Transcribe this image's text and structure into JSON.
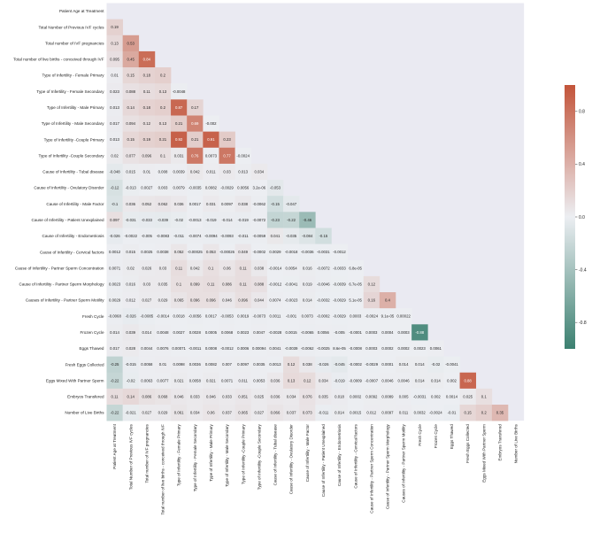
{
  "chart_data": {
    "type": "heatmap",
    "title": "",
    "mask": "upper-triangle",
    "colormap": [
      "#3b8070",
      "#eceef2",
      "#c3543a"
    ],
    "vmin": -1.0,
    "vmax": 1.0,
    "colorbar_ticks": [
      "0.8",
      "0.4",
      "0.0",
      "-0.4",
      "-0.8"
    ],
    "colorbar_values": [
      0.8,
      0.4,
      0.0,
      -0.4,
      -0.8
    ],
    "labels": [
      "Patient Age at Treatment",
      "Total Number of Previous IVF cycles",
      "Total number of IVF pregnancies",
      "Total number of live births - conceived through IVF",
      "Type of Infertility - Female Primary",
      "Type of Infertility - Female Secondary",
      "Type of Infertility - Male Primary",
      "Type of Infertility - Male Secondary",
      "Type of Infertility -Couple Primary",
      "Type of Infertility -Couple Secondary",
      "Cause  of Infertility - Tubal disease",
      "Cause of Infertility - Ovulatory Disorder",
      "Cause of Infertility - Male Factor",
      "Cause of Infertility - Patient Unexplained",
      "Cause of Infertility - Endometriosis",
      "Cause of Infertility - Cervical factors",
      "Cause of Infertility - Partner Sperm Concentration",
      "Cause of Infertility -  Partner Sperm Morphology",
      "Causes of Infertility - Partner Sperm Motility",
      "Fresh Cycle",
      "Frozen Cycle",
      "Eggs Thawed",
      "Fresh Eggs Collected",
      "Eggs Mixed With Partner Sperm",
      "Embryos Transfered",
      "Number of Live Births"
    ],
    "values": [
      [],
      [
        0.19
      ],
      [
        0.13,
        0.53
      ],
      [
        0.095,
        0.45,
        0.84
      ],
      [
        0.01,
        0.15,
        0.18,
        0.2
      ],
      [
        0.023,
        0.088,
        0.11,
        0.13,
        -0.0048
      ],
      [
        0.013,
        0.14,
        0.18,
        0.2,
        0.87,
        0.17
      ],
      [
        0.017,
        0.094,
        0.12,
        0.13,
        0.21,
        0.69,
        -0.002
      ],
      [
        0.013,
        0.15,
        0.19,
        0.21,
        0.92,
        0.21,
        0.91,
        0.23
      ],
      [
        0.02,
        0.077,
        0.096,
        0.1,
        0.031,
        0.76,
        0.0073,
        0.77,
        -0.0024
      ],
      [
        -0.048,
        0.015,
        0.01,
        0.008,
        0.0039,
        0.042,
        0.011,
        0.03,
        0.013,
        0.034
      ],
      [
        -0.12,
        -0.013,
        0.0027,
        0.003,
        0.0079,
        -0.0035,
        0.0082,
        -0.0029,
        0.0056,
        3.2e-06,
        -0.053
      ],
      [
        -0.1,
        0.036,
        0.052,
        0.062,
        0.036,
        0.0017,
        0.031,
        0.0097,
        0.038,
        -0.0062,
        -0.15,
        -0.047
      ],
      [
        0.097,
        -0.031,
        -0.033,
        -0.039,
        -0.02,
        -0.0013,
        -0.019,
        -0.014,
        -0.019,
        -0.0072,
        -0.23,
        -0.22,
        -0.46
      ],
      [
        -0.026,
        -0.0022,
        -0.005,
        -0.0083,
        -0.011,
        -0.0074,
        -0.0094,
        -0.0093,
        -0.011,
        -0.0059,
        0.041,
        -0.035,
        -0.084,
        -0.15
      ],
      [
        0.0012,
        0.015,
        0.0025,
        0.0038,
        0.052,
        -0.00025,
        0.053,
        -0.00026,
        0.049,
        -0.0002,
        0.0029,
        -0.0018,
        -0.0036,
        -0.0031,
        -0.0012
      ],
      [
        0.0071,
        0.02,
        0.026,
        0.03,
        0.11,
        0.042,
        0.1,
        0.06,
        0.11,
        0.038,
        -0.0014,
        0.0054,
        0.016,
        -0.0072,
        -0.0033,
        6.8e-05
      ],
      [
        0.0023,
        0.016,
        0.03,
        0.035,
        0.1,
        0.099,
        0.11,
        0.086,
        0.11,
        0.088,
        -0.0012,
        -0.0041,
        0.019,
        -0.0046,
        -0.0039,
        6.7e-05,
        0.12
      ],
      [
        0.0029,
        0.012,
        0.027,
        0.029,
        0.065,
        0.096,
        0.096,
        0.046,
        0.096,
        0.044,
        0.0074,
        -0.0023,
        0.014,
        -0.0032,
        -0.0029,
        5.1e-05,
        0.16,
        0.4
      ],
      [
        -0.0068,
        -0.026,
        -0.0085,
        -0.0014,
        0.0018,
        -0.0056,
        0.0017,
        -0.0053,
        0.0019,
        -0.0073,
        0.0011,
        -0.001,
        0.0073,
        -0.0002,
        -0.0029,
        0.0003,
        -0.0024,
        9.1e-05,
        0.00022
      ],
      [
        0.014,
        0.039,
        0.014,
        0.0048,
        0.0027,
        0.0028,
        0.0005,
        0.0068,
        0.0023,
        0.0047,
        -0.0028,
        0.0015,
        -0.0065,
        0.0056,
        -0.005,
        -0.0001,
        0.0003,
        0.0004,
        0.0003,
        -0.88
      ],
      [
        0.017,
        0.028,
        0.0044,
        0.0076,
        0.00071,
        -0.0011,
        0.0008,
        -0.0012,
        0.0006,
        0.00094,
        0.0041,
        -0.0039,
        -0.0062,
        -0.0025,
        8.6e-05,
        -0.0008,
        0.0003,
        0.0002,
        0.0002,
        0.0023,
        0.0061
      ],
      [
        -0.25,
        -0.015,
        0.0058,
        0.01,
        0.0098,
        0.0036,
        0.0082,
        0.007,
        0.0097,
        0.0035,
        0.0013,
        0.12,
        0.038,
        -0.026,
        -0.045,
        -0.0002,
        -0.0029,
        0.0001,
        0.014,
        0.014,
        -0.02,
        -0.0041
      ],
      [
        -0.22,
        -0.02,
        0.0063,
        0.0077,
        0.021,
        0.0058,
        0.021,
        0.0071,
        0.011,
        0.0053,
        0.036,
        0.13,
        0.12,
        0.034,
        -0.019,
        -0.0009,
        -0.0007,
        0.0046,
        0.0046,
        0.014,
        0.014,
        0.002,
        0.88
      ],
      [
        0.11,
        0.14,
        0.086,
        0.068,
        0.046,
        0.033,
        0.046,
        0.033,
        0.051,
        0.025,
        0.036,
        0.034,
        0.076,
        0.035,
        0.018,
        0.0002,
        0.0092,
        0.0089,
        0.005,
        -0.0031,
        0.002,
        0.0014,
        0.025,
        0.1
      ],
      [
        -0.22,
        -0.021,
        0.027,
        0.029,
        0.061,
        0.034,
        0.06,
        0.037,
        0.065,
        0.027,
        0.066,
        0.037,
        0.073,
        -0.011,
        0.014,
        0.0015,
        0.012,
        0.0097,
        0.011,
        0.0032,
        -0.0024,
        -0.01,
        0.15,
        0.2,
        0.35
      ]
    ],
    "display": [
      [],
      [
        "0.19"
      ],
      [
        "0.13",
        "0.53"
      ],
      [
        "0.095",
        "0.45",
        "0.84"
      ],
      [
        "0.01",
        "0.15",
        "0.18",
        "0.2"
      ],
      [
        "0.023",
        "0.088",
        "0.11",
        "0.13",
        "-0.0048"
      ],
      [
        "0.013",
        "0.14",
        "0.18",
        "0.2",
        "0.87",
        "0.17"
      ],
      [
        "0.017",
        "0.094",
        "0.12",
        "0.13",
        "0.21",
        "0.69",
        "-0.002"
      ],
      [
        "0.013",
        "0.15",
        "0.19",
        "0.21",
        "0.92",
        "0.21",
        "0.91",
        "0.23"
      ],
      [
        "0.02",
        "0.077",
        "0.096",
        "0.1",
        "0.031",
        "0.76",
        "0.0073",
        "0.77",
        "-0.0024"
      ],
      [
        "-0.048",
        "0.015",
        "0.01",
        "0.008",
        "0.0039",
        "0.042",
        "0.011",
        "0.03",
        "0.013",
        "0.034"
      ],
      [
        "-0.12",
        "-0.013",
        "0.0027",
        "0.003",
        "0.0079",
        "-0.0035",
        "0.0082",
        "-0.0029",
        "0.0056",
        "3.2e-06",
        "-0.053"
      ],
      [
        "-0.1",
        "0.036",
        "0.052",
        "0.062",
        "0.036",
        "0.0017",
        "0.031",
        "0.0097",
        "0.038",
        "-0.0062",
        "-0.15",
        "-0.047"
      ],
      [
        "0.097",
        "-0.031",
        "-0.033",
        "-0.039",
        "-0.02",
        "-0.0013",
        "-0.019",
        "-0.014",
        "-0.019",
        "-0.0072",
        "-0.23",
        "-0.22",
        "-0.46"
      ],
      [
        "-0.026",
        "-0.0022",
        "-0.005",
        "-0.0083",
        "-0.011",
        "-0.0074",
        "-0.0094",
        "-0.0093",
        "-0.011",
        "-0.0059",
        "0.041",
        "-0.035",
        "-0.084",
        "-0.15"
      ],
      [
        "0.0012",
        "0.015",
        "0.0025",
        "0.0038",
        "0.052",
        "-0.00025",
        "0.053",
        "-0.00026",
        "0.049",
        "-0.0002",
        "0.0029",
        "-0.0018",
        "-0.0036",
        "-0.0031",
        "-0.0012"
      ],
      [
        "0.0071",
        "0.02",
        "0.026",
        "0.03",
        "0.11",
        "0.042",
        "0.1",
        "0.06",
        "0.11",
        "0.038",
        "-0.0014",
        "0.0054",
        "0.016",
        "-0.0072",
        "-0.0033",
        "6.8e-05"
      ],
      [
        "0.0023",
        "0.016",
        "0.03",
        "0.035",
        "0.1",
        "0.099",
        "0.11",
        "0.086",
        "0.11",
        "0.088",
        "-0.0012",
        "-0.0041",
        "0.019",
        "-0.0046",
        "-0.0039",
        "6.7e-05",
        "0.12"
      ],
      [
        "0.0029",
        "0.012",
        "0.027",
        "0.029",
        "0.065",
        "0.096",
        "0.096",
        "0.046",
        "0.096",
        "0.044",
        "0.0074",
        "-0.0023",
        "0.014",
        "-0.0032",
        "-0.0029",
        "5.1e-05",
        "0.16",
        "0.4"
      ],
      [
        "-0.0068",
        "-0.026",
        "-0.0085",
        "-0.0014",
        "0.0018",
        "-0.0056",
        "0.0017",
        "-0.0053",
        "0.0019",
        "-0.0073",
        "0.0011",
        "-0.001",
        "0.0073",
        "-0.0002",
        "-0.0029",
        "0.0003",
        "-0.0024",
        "9.1e-05",
        "0.00022"
      ],
      [
        "0.014",
        "0.039",
        "0.014",
        "0.0048",
        "0.0027",
        "0.0028",
        "0.0005",
        "0.0068",
        "0.0023",
        "0.0047",
        "-0.0028",
        "0.0015",
        "-0.0065",
        "0.0056",
        "-0.005",
        "-0.0001",
        "0.0003",
        "0.0004",
        "0.0003",
        "-0.88"
      ],
      [
        "0.017",
        "0.028",
        "0.0044",
        "0.0076",
        "0.00071",
        "-0.0011",
        "0.0008",
        "-0.0012",
        "0.0006",
        "0.00094",
        "0.0041",
        "-0.0039",
        "-0.0062",
        "-0.0025",
        "8.6e-05",
        "-0.0008",
        "0.0003",
        "0.0002",
        "0.0002",
        "0.0023",
        "0.0061"
      ],
      [
        "-0.25",
        "-0.015",
        "0.0058",
        "0.01",
        "0.0098",
        "0.0036",
        "0.0082",
        "0.007",
        "0.0097",
        "0.0035",
        "0.0013",
        "0.12",
        "0.038",
        "-0.026",
        "-0.045",
        "-0.0002",
        "-0.0029",
        "0.0001",
        "0.014",
        "0.014",
        "-0.02",
        "-0.0041"
      ],
      [
        "-0.22",
        "-0.02",
        "0.0063",
        "0.0077",
        "0.021",
        "0.0058",
        "0.021",
        "0.0071",
        "0.011",
        "0.0053",
        "0.036",
        "0.13",
        "0.12",
        "0.034",
        "-0.019",
        "-0.0009",
        "-0.0007",
        "0.0046",
        "0.0046",
        "0.014",
        "0.014",
        "0.002",
        "0.88"
      ],
      [
        "0.11",
        "0.14",
        "0.086",
        "0.068",
        "0.046",
        "0.033",
        "0.046",
        "0.033",
        "0.051",
        "0.025",
        "0.036",
        "0.034",
        "0.076",
        "0.035",
        "0.018",
        "0.0002",
        "0.0092",
        "0.0089",
        "0.005",
        "-0.0031",
        "0.002",
        "0.0014",
        "0.025",
        "0.1"
      ],
      [
        "-0.22",
        "-0.021",
        "0.027",
        "0.029",
        "0.061",
        "0.034",
        "0.06",
        "0.037",
        "0.065",
        "0.027",
        "0.066",
        "0.037",
        "0.073",
        "-0.011",
        "0.014",
        "0.0015",
        "0.012",
        "0.0097",
        "0.011",
        "0.0032",
        "-0.0024",
        "-0.01",
        "0.15",
        "0.2",
        "0.35"
      ]
    ]
  }
}
